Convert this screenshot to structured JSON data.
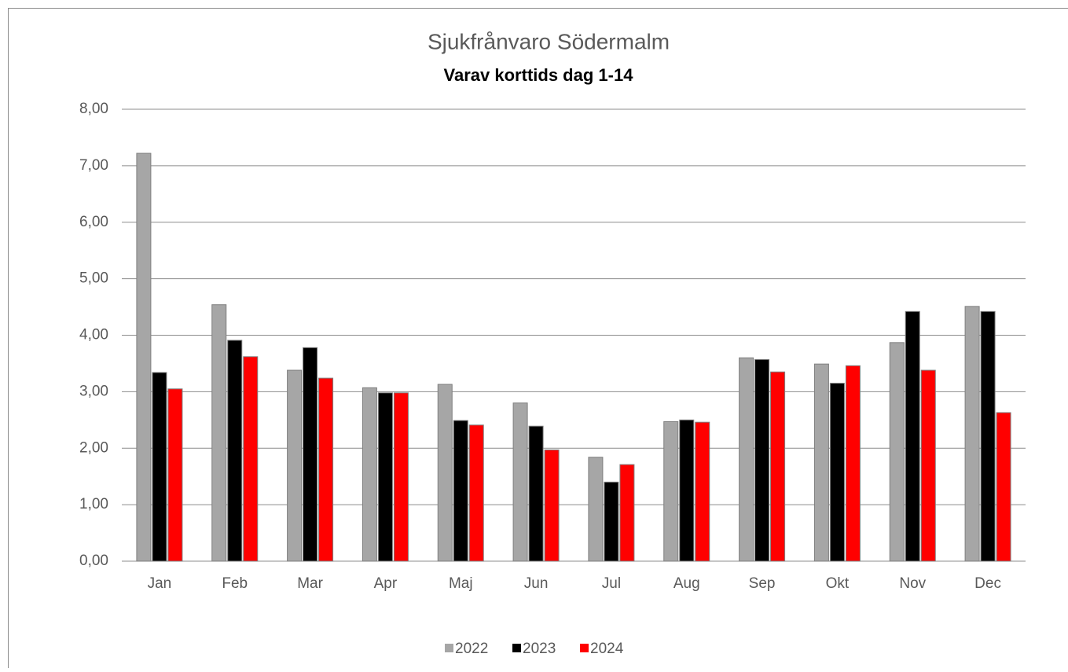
{
  "chart_data": {
    "type": "bar",
    "title": "Sjukfrånvaro Södermalm",
    "subtitle": "Varav korttids dag 1-14",
    "categories": [
      "Jan",
      "Feb",
      "Mar",
      "Apr",
      "Maj",
      "Jun",
      "Jul",
      "Aug",
      "Sep",
      "Okt",
      "Nov",
      "Dec"
    ],
    "series": [
      {
        "name": "2022",
        "color": "#a6a6a6",
        "values": [
          7.22,
          4.54,
          3.38,
          3.07,
          3.13,
          2.8,
          1.84,
          2.47,
          3.6,
          3.49,
          3.87,
          4.51
        ]
      },
      {
        "name": "2023",
        "color": "#000000",
        "values": [
          3.34,
          3.91,
          3.78,
          2.98,
          2.49,
          2.39,
          1.4,
          2.5,
          3.57,
          3.15,
          4.42,
          4.42
        ]
      },
      {
        "name": "2024",
        "color": "#ff0000",
        "values": [
          3.05,
          3.62,
          3.24,
          2.98,
          2.41,
          1.97,
          1.71,
          2.46,
          3.35,
          3.46,
          3.38,
          2.63
        ]
      }
    ],
    "ylim": [
      0,
      8
    ],
    "yticks": [
      {
        "value": 0,
        "label": "0,00"
      },
      {
        "value": 1,
        "label": "1,00"
      },
      {
        "value": 2,
        "label": "2,00"
      },
      {
        "value": 3,
        "label": "3,00"
      },
      {
        "value": 4,
        "label": "4,00"
      },
      {
        "value": 5,
        "label": "5,00"
      },
      {
        "value": 6,
        "label": "6,00"
      },
      {
        "value": 7,
        "label": "7,00"
      },
      {
        "value": 8,
        "label": "8,00"
      }
    ],
    "grid": true,
    "legend": "bottom"
  }
}
